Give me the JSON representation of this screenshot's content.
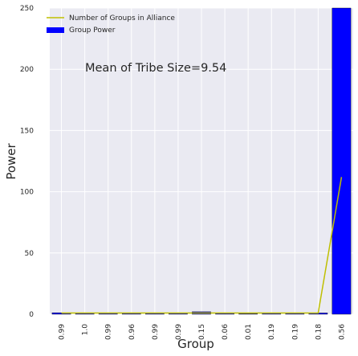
{
  "chart_data": {
    "type": "bar",
    "categories": [
      "0.99",
      "1.0",
      "0.99",
      "0.96",
      "0.99",
      "0.99",
      "0.15",
      "0.06",
      "0.01",
      "0.19",
      "0.19",
      "0.18",
      "0.56"
    ],
    "xlabel": "Group",
    "ylabel": "Power",
    "ylim": [
      0,
      250
    ],
    "yticks": [
      0,
      50,
      100,
      150,
      200,
      250
    ],
    "grid": true,
    "legend_position": "top-left",
    "annotation": "Mean of Tribe Size=9.54",
    "series": [
      {
        "name": "Number of Groups in Alliance",
        "type": "line",
        "color": "#bfbf00",
        "values": [
          1,
          1,
          1,
          1,
          1,
          1,
          1,
          1,
          1,
          1,
          1,
          1,
          112
        ]
      },
      {
        "name": "Group Power",
        "type": "bar",
        "color": "#0000ff",
        "values": [
          1.2,
          1,
          1,
          1,
          1,
          1,
          2,
          1,
          0.5,
          1,
          1,
          1,
          250
        ]
      }
    ]
  }
}
